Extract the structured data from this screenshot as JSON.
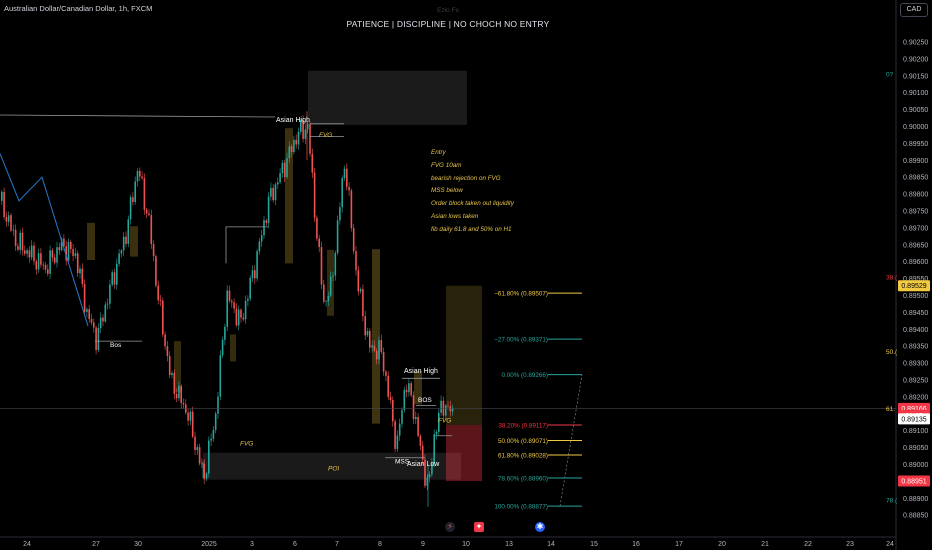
{
  "header": {
    "title": "Australian Dollar/Canadian Dollar, 1h, FXCM",
    "subtitle": "PATIENCE  |  DISCIPLINE  |  NO CHOCH NO ENTRY",
    "watermark": "Ezio Fx",
    "currency_button": "CAD"
  },
  "notes": [
    "Entry",
    "FVG 10am",
    "bearish rejection on FVG",
    "MSS below",
    "Order block taken out liquidity",
    "Asian lows taken",
    "fib daily 61.8  and 50% on H1"
  ],
  "chart_data": {
    "type": "candlestick",
    "symbol": "AUDCAD",
    "timeframe": "1h",
    "ylim": [
      0.88805,
      0.90295
    ],
    "price_ticks": [
      "0.90250",
      "0.90200",
      "0.90150",
      "0.90100",
      "0.90050",
      "0.90000",
      "0.89950",
      "0.89900",
      "0.89850",
      "0.89800",
      "0.89750",
      "0.89700",
      "0.89650",
      "0.89600",
      "0.89550",
      "0.89500",
      "0.89450",
      "0.89400",
      "0.89350",
      "0.89300",
      "0.89250",
      "0.89200",
      "0.89150",
      "0.89100",
      "0.89050",
      "0.89000",
      "0.88950",
      "0.88900",
      "0.88850"
    ],
    "time_labels": [
      "24",
      "27",
      "30",
      "2025",
      "3",
      "6",
      "7",
      "8",
      "9",
      "10",
      "13",
      "14",
      "15",
      "16",
      "17",
      "20",
      "21",
      "22",
      "23",
      "24"
    ],
    "price_labels": [
      {
        "text": "0.89529",
        "price": 0.89529,
        "color": "#f2ca42",
        "text_color": "#000000"
      },
      {
        "text": "0.89166",
        "price": 0.89166,
        "color": "#f23645",
        "text_color": "#ffffff"
      },
      {
        "text": "01:35",
        "price": 0.89145,
        "color": "#f23645",
        "text_color": "#ffffff"
      },
      {
        "text": "0.89135",
        "price": 0.89135,
        "color": "#ffffff",
        "text_color": "#000000"
      },
      {
        "text": "0.88951",
        "price": 0.88951,
        "color": "#f23645",
        "text_color": "#ffffff"
      }
    ],
    "axis_partial_labels": [
      {
        "text": "0?",
        "price": 0.90155,
        "color": "#26a69a"
      },
      {
        "text": "38.(",
        "price": 0.89555,
        "color": "#f23645"
      },
      {
        "text": "50.(",
        "price": 0.89335,
        "color": "#f2ca42"
      },
      {
        "text": "61.",
        "price": 0.89166,
        "color": "#f2ca42"
      },
      {
        "text": "78.(",
        "price": 0.88895,
        "color": "#26a69a"
      }
    ],
    "fib_levels": [
      {
        "label": "−61.80% (0.89507)",
        "price": 0.89507,
        "color": "#f2ca42"
      },
      {
        "label": "−27.00% (0.89371)",
        "price": 0.89371,
        "color": "#26a69a"
      },
      {
        "label": "0.00% (0.89266)",
        "price": 0.89266,
        "color": "#26a69a"
      },
      {
        "label": "38.20% (0.89117)",
        "price": 0.89117,
        "color": "#f23645"
      },
      {
        "label": "50.00% (0.89071)",
        "price": 0.89071,
        "color": "#f2ca42"
      },
      {
        "label": "61.80% (0.89028)",
        "price": 0.89028,
        "color": "#f2ca42"
      },
      {
        "label": "78.60% (0.88960)",
        "price": 0.8896,
        "color": "#26a69a"
      },
      {
        "label": "100.00% (0.88877)",
        "price": 0.88877,
        "color": "#26a69a"
      }
    ],
    "annotations": [
      {
        "text": "Asian High",
        "price": 0.90021,
        "color": "#ffffff"
      },
      {
        "text": "FVG",
        "price": 0.89977,
        "color": "#e7c44a"
      },
      {
        "text": "Bos",
        "price": 0.89355,
        "color": "#ffffff"
      },
      {
        "text": "Asian High",
        "price": 0.89278,
        "color": "#ffffff"
      },
      {
        "text": "BOS",
        "price": 0.89192,
        "color": "#ffffff"
      },
      {
        "text": "FVG",
        "price": 0.89132,
        "color": "#e7c44a"
      },
      {
        "text": "FVG",
        "price": 0.89064,
        "color": "#e7c44a"
      },
      {
        "text": "MSS",
        "price": 0.89011,
        "color": "#ffffff"
      },
      {
        "text": "Asian Low",
        "price": 0.89003,
        "color": "#ffffff"
      },
      {
        "text": "POI",
        "price": 0.8899,
        "color": "#e7c44a"
      }
    ],
    "colors": {
      "up": "#26a69a",
      "down": "#ef5350",
      "fib_gold": "#f2ca42",
      "annotation": "#e7c44a"
    }
  }
}
